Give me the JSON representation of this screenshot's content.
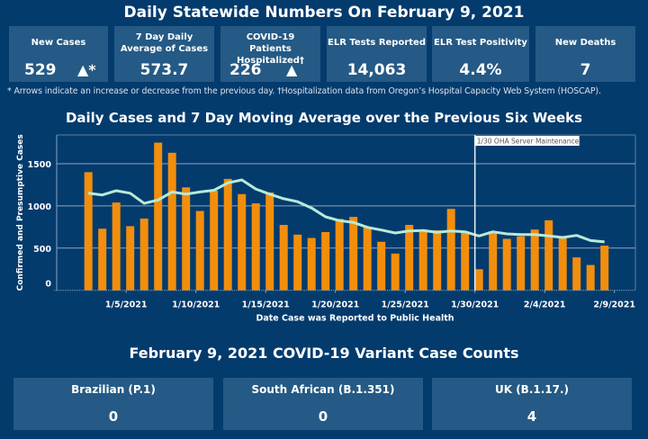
{
  "header": {
    "title": "Daily Statewide Numbers On February 9, 2021"
  },
  "kpis": [
    {
      "label": "New Cases",
      "value": "529",
      "arrow": "▲*"
    },
    {
      "label": "7 Day Daily Average of Cases",
      "value": "573.7",
      "arrow": ""
    },
    {
      "label": "COVID-19 Patients Hospitalized†",
      "value": "226",
      "arrow": "▲"
    },
    {
      "label": "ELR Tests Reported",
      "value": "14,063",
      "arrow": ""
    },
    {
      "label": "ELR Test Positivity",
      "value": "4.4%",
      "arrow": ""
    },
    {
      "label": "New Deaths",
      "value": "7",
      "arrow": ""
    }
  ],
  "footnote": "* Arrows indicate an increase or decrease from the previous day. †Hospitalization data from Oregon’s Hospital Capacity Web System (HOSCAP).",
  "chart_title": "Daily Cases and 7 Day Moving Average over the Previous Six Weeks",
  "chart_data": {
    "type": "bar",
    "title": "Daily Cases and 7 Day Moving Average over the Previous Six Weeks",
    "xlabel": "Date Case was Reported to Public Health",
    "ylabel": "Confirmed and Presumptive Cases",
    "ylim": [
      0,
      1850
    ],
    "yticks": [
      0,
      500,
      1000,
      1500
    ],
    "grid": true,
    "xticks": [
      "1/5/2021",
      "1/10/2021",
      "1/15/2021",
      "1/20/2021",
      "1/25/2021",
      "1/30/2021",
      "2/4/2021",
      "2/9/2021"
    ],
    "categories": [
      "1/2",
      "1/3",
      "1/4",
      "1/5",
      "1/6",
      "1/7",
      "1/8",
      "1/9",
      "1/10",
      "1/11",
      "1/12",
      "1/13",
      "1/14",
      "1/15",
      "1/16",
      "1/17",
      "1/18",
      "1/19",
      "1/20",
      "1/21",
      "1/22",
      "1/23",
      "1/24",
      "1/25",
      "1/26",
      "1/27",
      "1/28",
      "1/29",
      "1/30",
      "1/31",
      "2/1",
      "2/2",
      "2/3",
      "2/4",
      "2/5",
      "2/6",
      "2/7",
      "2/8"
    ],
    "series": [
      {
        "name": "Daily Cases",
        "type": "bar",
        "color": "#f28e0c",
        "values": [
          1400,
          730,
          1040,
          760,
          850,
          1750,
          1630,
          1220,
          940,
          1180,
          1320,
          1140,
          1030,
          1160,
          775,
          660,
          620,
          690,
          845,
          870,
          750,
          575,
          435,
          775,
          690,
          710,
          965,
          700,
          250,
          700,
          610,
          640,
          720,
          830,
          615,
          390,
          300,
          529
        ]
      },
      {
        "name": "7 Day Moving Average",
        "type": "line",
        "color": "#b7ead9",
        "values": [
          1150,
          1130,
          1180,
          1150,
          1030,
          1070,
          1165,
          1140,
          1165,
          1185,
          1273,
          1308,
          1200,
          1140,
          1085,
          1050,
          975,
          871,
          825,
          804,
          746,
          714,
          679,
          704,
          708,
          687,
          704,
          693,
          644,
          693,
          668,
          661,
          661,
          644,
          626,
          650,
          590,
          574
        ]
      }
    ],
    "annotations": [
      {
        "x": "1/30/2021",
        "text": "1/30 OHA Server Maintenance"
      }
    ]
  },
  "variants": {
    "title": "February 9, 2021 COVID-19 Variant Case Counts",
    "items": [
      {
        "label": "Brazilian (P.1)",
        "value": "0"
      },
      {
        "label": "South African (B.1.351)",
        "value": "0"
      },
      {
        "label": "UK (B.1.17.)",
        "value": "4"
      }
    ]
  }
}
